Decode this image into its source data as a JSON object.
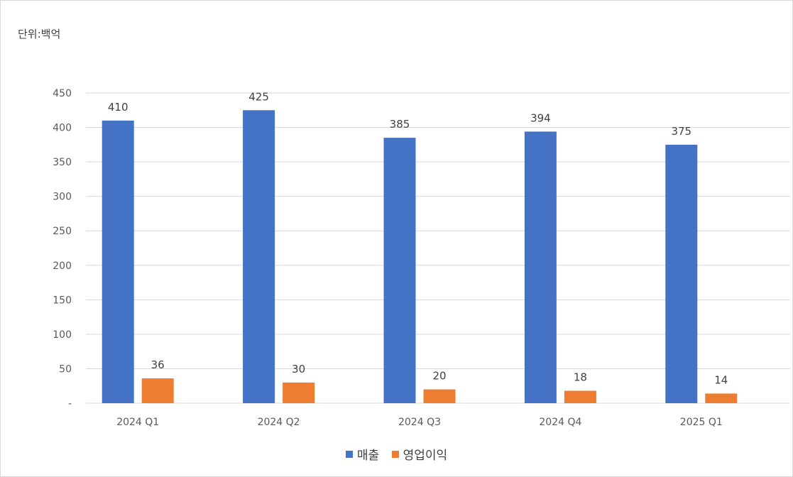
{
  "unit_label": "단위:백억",
  "colors": {
    "revenue": "#4472C4",
    "operating_profit": "#ED7D31",
    "grid": "#d9d9d9"
  },
  "chart_data": {
    "type": "bar",
    "categories": [
      "2024 Q1",
      "2024 Q2",
      "2024 Q3",
      "2024 Q4",
      "2025 Q1"
    ],
    "series": [
      {
        "name": "매출",
        "values": [
          410,
          425,
          385,
          394,
          375
        ]
      },
      {
        "name": "영업이익",
        "values": [
          36,
          30,
          20,
          18,
          14
        ]
      }
    ],
    "ylim": [
      0,
      450
    ],
    "yticks": [
      "-",
      "50",
      "100",
      "150",
      "200",
      "250",
      "300",
      "350",
      "400",
      "450"
    ],
    "grid": true,
    "legend": "bottom"
  }
}
